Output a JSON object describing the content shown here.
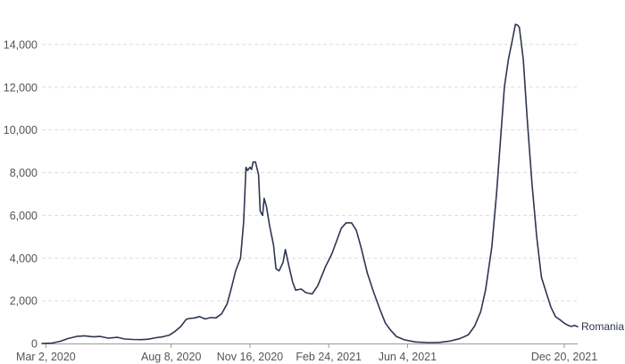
{
  "chart_data": {
    "type": "line",
    "title": "",
    "xlabel": "",
    "ylabel": "",
    "ylim": [
      0,
      15000
    ],
    "y_ticks": [
      0,
      2000,
      4000,
      6000,
      8000,
      10000,
      12000,
      14000
    ],
    "y_tick_labels": [
      "0",
      "2,000",
      "4,000",
      "6,000",
      "8,000",
      "10,000",
      "12,000",
      "14,000"
    ],
    "xlim": [
      "2020-02-26",
      "2022-01-06"
    ],
    "x_ticks": [
      "2020-03-02",
      "2020-08-08",
      "2020-11-16",
      "2021-02-24",
      "2021-06-04",
      "2021-12-20"
    ],
    "x_tick_labels": [
      "Mar 2, 2020",
      "Aug 8, 2020",
      "Nov 16, 2020",
      "Feb 24, 2021",
      "Jun 4, 2021",
      "Dec 20, 2021"
    ],
    "grid": true,
    "colors": {
      "series": "#2e3650",
      "grid": "#dddddd",
      "tick_text": "#555555"
    },
    "series": [
      {
        "name": "Romania",
        "label_position": "end",
        "points": [
          [
            "2020-02-26",
            0
          ],
          [
            "2020-03-10",
            20
          ],
          [
            "2020-03-20",
            100
          ],
          [
            "2020-03-30",
            230
          ],
          [
            "2020-04-10",
            330
          ],
          [
            "2020-04-20",
            360
          ],
          [
            "2020-05-01",
            310
          ],
          [
            "2020-05-10",
            330
          ],
          [
            "2020-05-20",
            250
          ],
          [
            "2020-06-01",
            290
          ],
          [
            "2020-06-10",
            210
          ],
          [
            "2020-06-20",
            190
          ],
          [
            "2020-07-01",
            180
          ],
          [
            "2020-07-10",
            200
          ],
          [
            "2020-07-20",
            270
          ],
          [
            "2020-07-28",
            310
          ],
          [
            "2020-08-01",
            350
          ],
          [
            "2020-08-05",
            380
          ],
          [
            "2020-08-13",
            570
          ],
          [
            "2020-08-20",
            790
          ],
          [
            "2020-08-27",
            1130
          ],
          [
            "2020-08-31",
            1170
          ],
          [
            "2020-09-07",
            1200
          ],
          [
            "2020-09-13",
            1260
          ],
          [
            "2020-09-20",
            1150
          ],
          [
            "2020-09-27",
            1210
          ],
          [
            "2020-10-04",
            1200
          ],
          [
            "2020-10-11",
            1390
          ],
          [
            "2020-10-18",
            1860
          ],
          [
            "2020-10-23",
            2540
          ],
          [
            "2020-10-29",
            3420
          ],
          [
            "2020-11-04",
            4000
          ],
          [
            "2020-11-08",
            5700
          ],
          [
            "2020-11-11",
            8250
          ],
          [
            "2020-11-13",
            8100
          ],
          [
            "2020-11-16",
            8250
          ],
          [
            "2020-11-18",
            8150
          ],
          [
            "2020-11-20",
            8500
          ],
          [
            "2020-11-23",
            8500
          ],
          [
            "2020-11-27",
            7900
          ],
          [
            "2020-11-29",
            6200
          ],
          [
            "2020-12-02",
            6000
          ],
          [
            "2020-12-04",
            6800
          ],
          [
            "2020-12-07",
            6400
          ],
          [
            "2020-12-11",
            5500
          ],
          [
            "2020-12-16",
            4600
          ],
          [
            "2020-12-19",
            3500
          ],
          [
            "2020-12-23",
            3400
          ],
          [
            "2020-12-28",
            3800
          ],
          [
            "2020-12-31",
            4400
          ],
          [
            "2021-01-04",
            3700
          ],
          [
            "2021-01-09",
            2900
          ],
          [
            "2021-01-13",
            2500
          ],
          [
            "2021-01-20",
            2550
          ],
          [
            "2021-01-26",
            2380
          ],
          [
            "2021-02-03",
            2320
          ],
          [
            "2021-02-10",
            2700
          ],
          [
            "2021-02-20",
            3600
          ],
          [
            "2021-02-28",
            4200
          ],
          [
            "2021-03-06",
            4800
          ],
          [
            "2021-03-12",
            5400
          ],
          [
            "2021-03-18",
            5650
          ],
          [
            "2021-03-25",
            5650
          ],
          [
            "2021-03-31",
            5300
          ],
          [
            "2021-04-06",
            4500
          ],
          [
            "2021-04-14",
            3300
          ],
          [
            "2021-04-22",
            2400
          ],
          [
            "2021-05-01",
            1500
          ],
          [
            "2021-05-07",
            950
          ],
          [
            "2021-05-14",
            600
          ],
          [
            "2021-05-21",
            320
          ],
          [
            "2021-05-31",
            170
          ],
          [
            "2021-06-14",
            70
          ],
          [
            "2021-06-30",
            40
          ],
          [
            "2021-07-14",
            50
          ],
          [
            "2021-07-26",
            100
          ],
          [
            "2021-08-09",
            220
          ],
          [
            "2021-08-20",
            400
          ],
          [
            "2021-08-28",
            800
          ],
          [
            "2021-09-05",
            1500
          ],
          [
            "2021-09-11",
            2500
          ],
          [
            "2021-09-19",
            4500
          ],
          [
            "2021-09-25",
            7000
          ],
          [
            "2021-09-30",
            9500
          ],
          [
            "2021-10-05",
            12000
          ],
          [
            "2021-10-10",
            13300
          ],
          [
            "2021-10-15",
            14200
          ],
          [
            "2021-10-19",
            14950
          ],
          [
            "2021-10-22",
            14900
          ],
          [
            "2021-10-24",
            14800
          ],
          [
            "2021-10-29",
            13300
          ],
          [
            "2021-11-03",
            10500
          ],
          [
            "2021-11-09",
            7500
          ],
          [
            "2021-11-15",
            5000
          ],
          [
            "2021-11-21",
            3100
          ],
          [
            "2021-11-27",
            2400
          ],
          [
            "2021-12-03",
            1700
          ],
          [
            "2021-12-09",
            1250
          ],
          [
            "2021-12-15",
            1100
          ],
          [
            "2021-12-20",
            950
          ],
          [
            "2021-12-25",
            850
          ],
          [
            "2021-12-29",
            800
          ],
          [
            "2022-01-02",
            850
          ],
          [
            "2022-01-06",
            790
          ]
        ]
      }
    ]
  }
}
